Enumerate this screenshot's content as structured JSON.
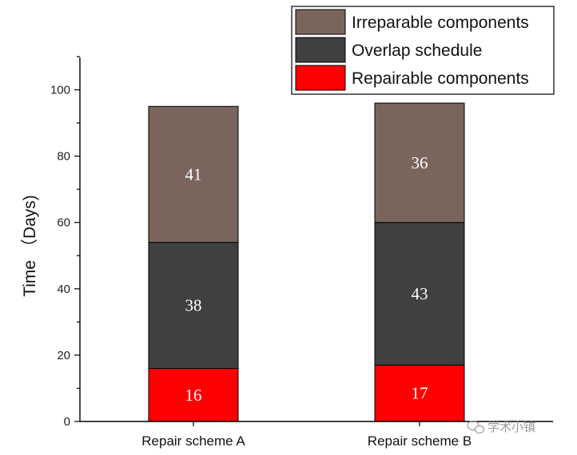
{
  "chart_data": {
    "type": "bar",
    "stacked": true,
    "categories": [
      "Repair scheme A",
      "Repair scheme B"
    ],
    "series": [
      {
        "name": "Repairable components",
        "values": [
          16,
          17
        ],
        "color": "#ff0000"
      },
      {
        "name": "Overlap schedule",
        "values": [
          38,
          43
        ],
        "color": "#404040"
      },
      {
        "name": "Irreparable components",
        "values": [
          41,
          36
        ],
        "color": "#7a655d"
      }
    ],
    "segment_tops": [
      [
        16,
        54,
        95
      ],
      [
        17,
        60,
        96
      ]
    ],
    "ylabel": "Time （Days)",
    "ylim": [
      0,
      110
    ],
    "yticks": [
      0,
      20,
      40,
      60,
      80,
      100
    ],
    "grid": false,
    "legend_position": "top-right",
    "legend_order": [
      "Irreparable components",
      "Overlap schedule",
      "Repairable components"
    ]
  },
  "watermark": {
    "text": "学术小镇",
    "icon": "wechat-icon"
  }
}
